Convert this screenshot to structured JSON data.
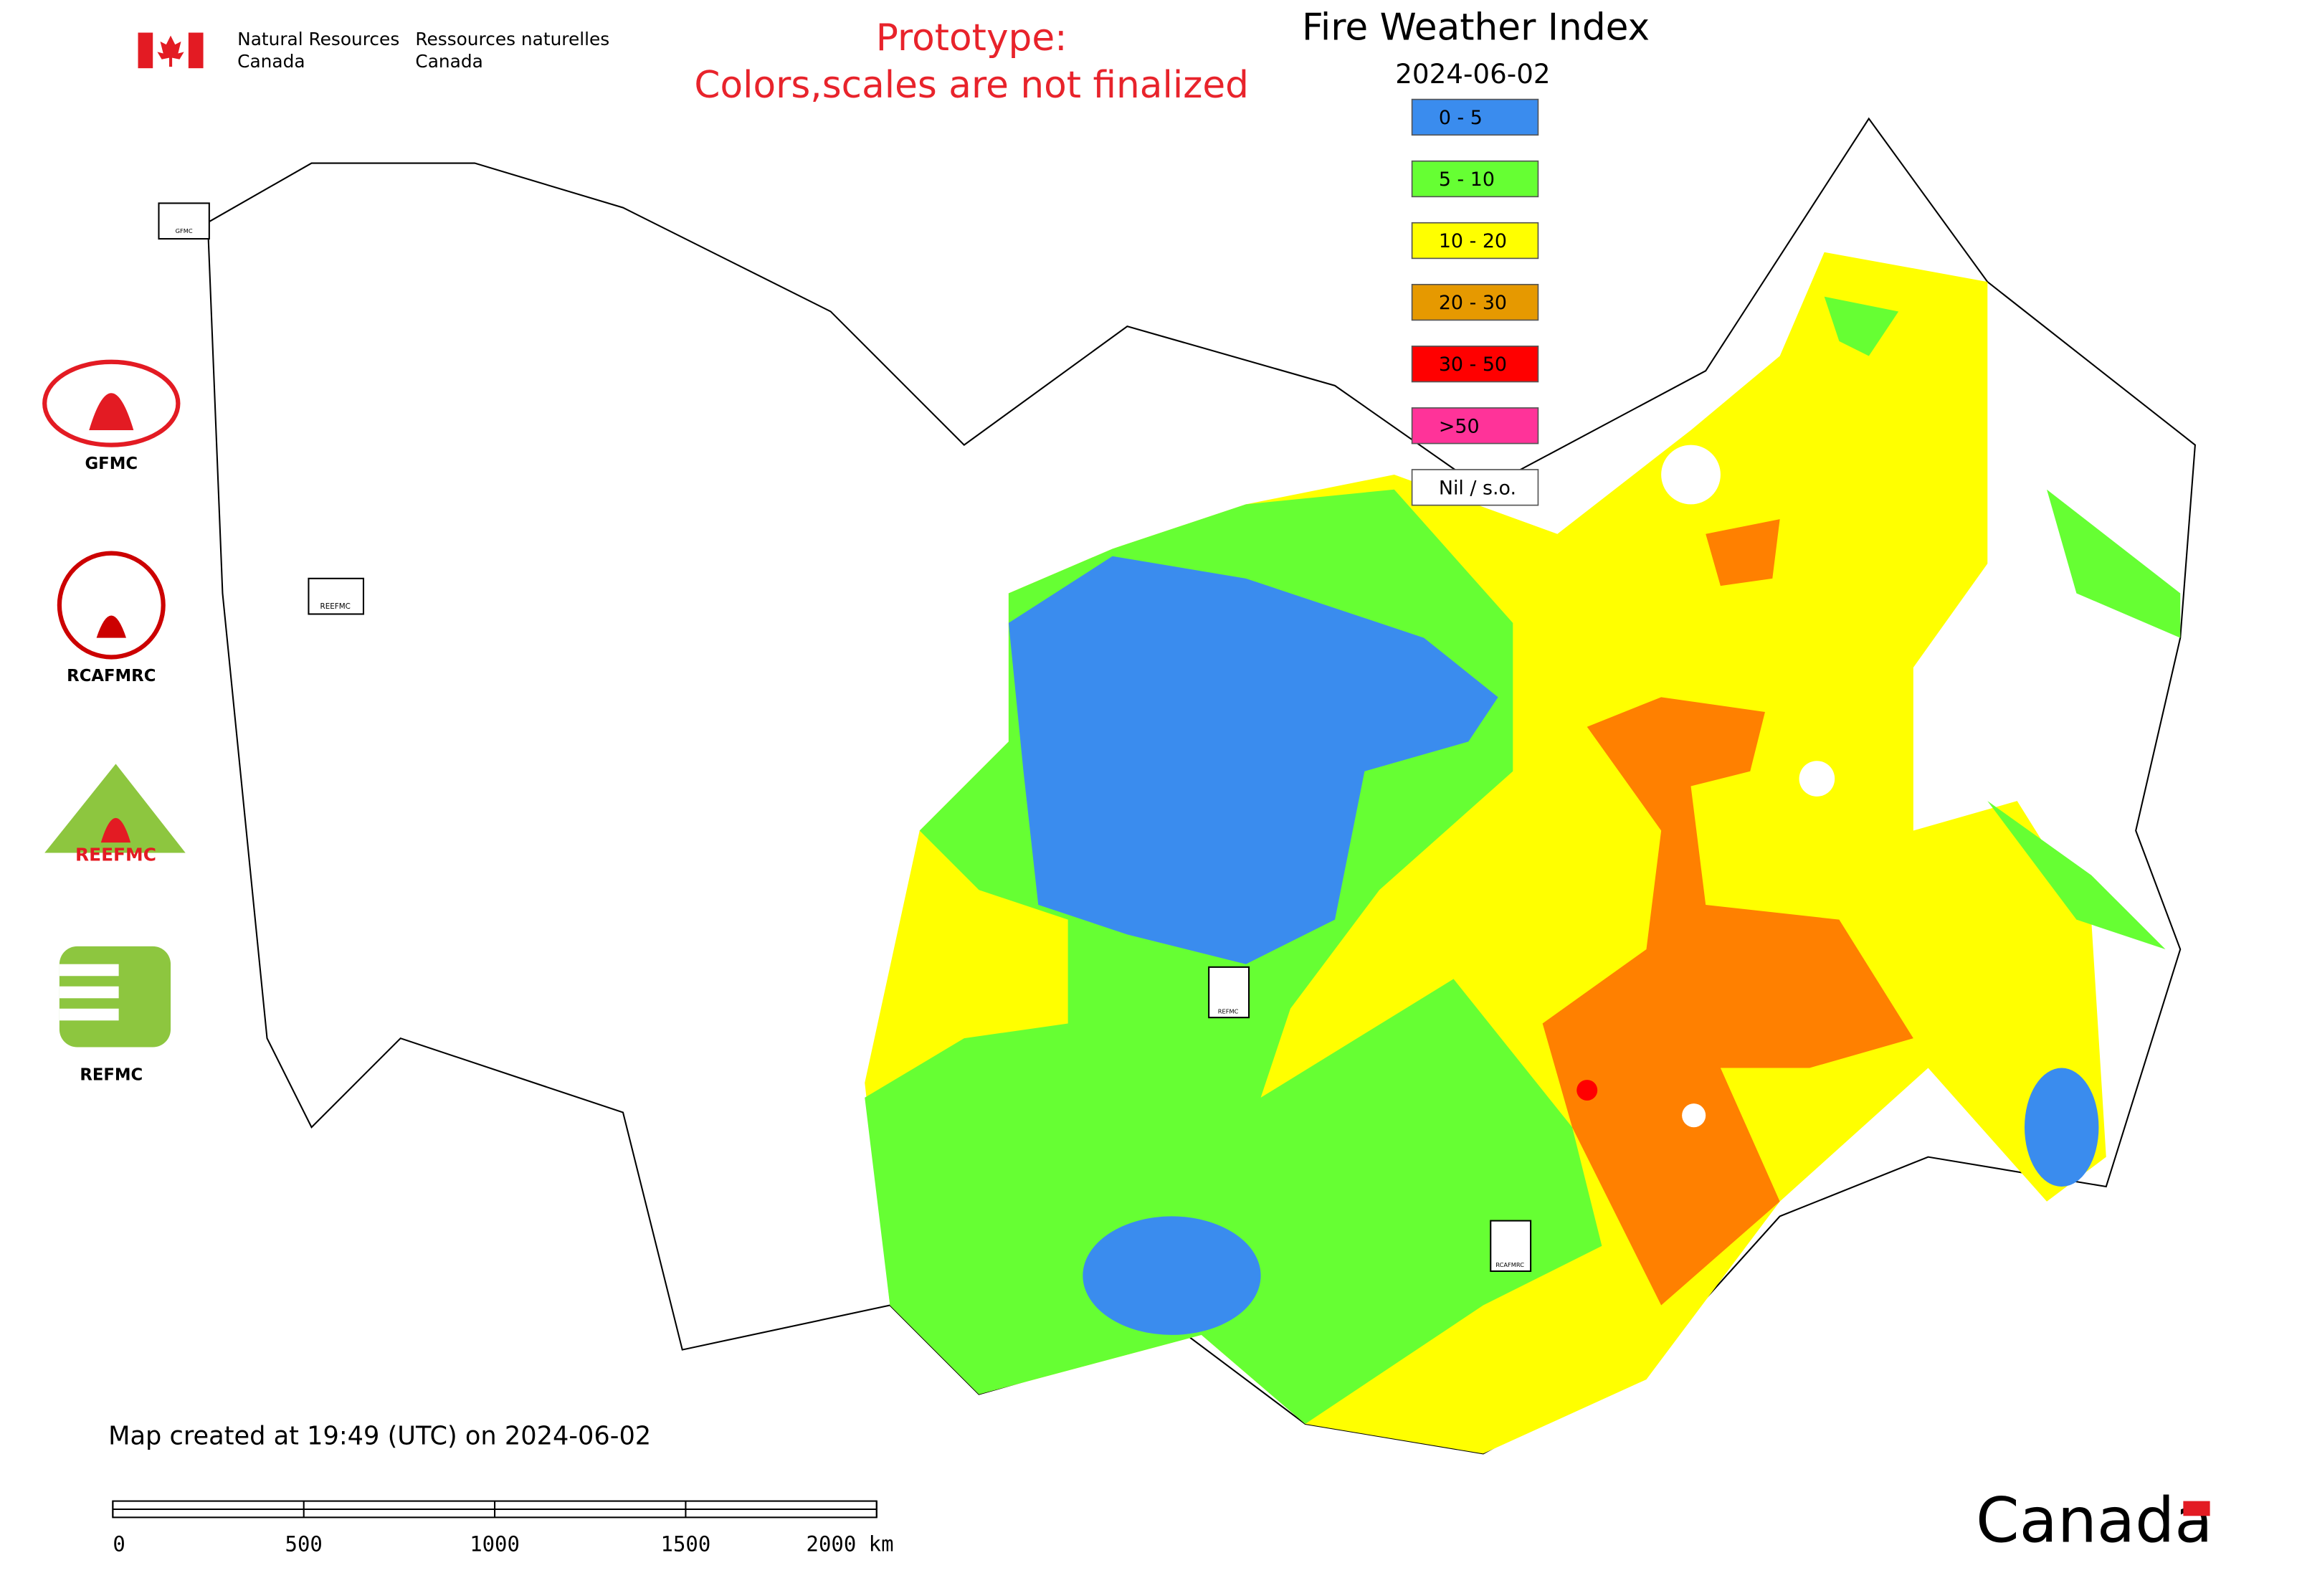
{
  "header": {
    "department_en": [
      "Natural Resources",
      "Canada"
    ],
    "department_fr": [
      "Ressources naturelles",
      "Canada"
    ],
    "notice": [
      "Prototype:",
      "Colors,scales are not finalized"
    ],
    "title": "Fire Weather Index",
    "date": "2024-06-02"
  },
  "legend": [
    {
      "label": "0 - 5",
      "color": "#3a8cee"
    },
    {
      "label": "5 - 10",
      "color": "#66ff33"
    },
    {
      "label": "10 - 20",
      "color": "#ffff00"
    },
    {
      "label": "20 - 30",
      "color": "#e69900"
    },
    {
      "label": "30 - 50",
      "color": "#ff0000"
    },
    {
      "label": ">50",
      "color": "#ff3399"
    },
    {
      "label": "Nil / s.o.",
      "color": "#ffffff"
    }
  ],
  "logos": [
    "GFMC",
    "RCAFMRC",
    "REEFMC",
    "REFMC"
  ],
  "map_markers": [
    "GFMC",
    "REEFMC",
    "REFMC",
    "RCAFMRC"
  ],
  "footer": {
    "created": "Map created at 19:49 (UTC) on 2024-06-02",
    "scale_labels": [
      "0",
      "500",
      "1000",
      "1500",
      "2000 km"
    ],
    "wordmark": "Canada"
  }
}
